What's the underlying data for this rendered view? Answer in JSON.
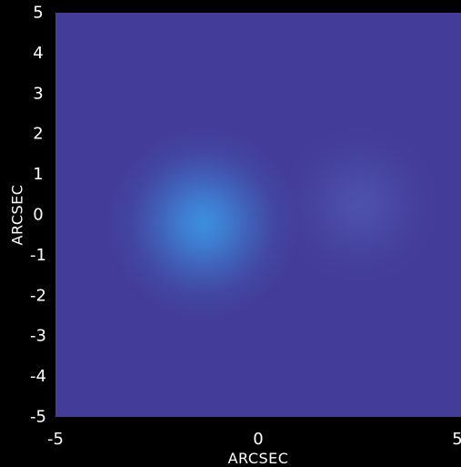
{
  "chart_data": {
    "type": "heatmap",
    "title": "",
    "xlabel": "ARCSEC",
    "ylabel": "ARCSEC",
    "xlim": [
      -5,
      5
    ],
    "ylim": [
      -5,
      5
    ],
    "x_ticks": [
      -5,
      0,
      5
    ],
    "y_ticks": [
      5,
      4,
      3,
      2,
      1,
      0,
      -1,
      -2,
      -3,
      -4,
      -5
    ],
    "x_tick_labels": [
      "-5",
      "0",
      "5"
    ],
    "y_tick_labels": [
      "5",
      "4",
      "3",
      "2",
      "1",
      "0",
      "-1",
      "-2",
      "-3",
      "-4",
      "-5"
    ],
    "grid": false,
    "background_color": "#433d99",
    "sources": [
      {
        "x": -1.35,
        "y": -0.2,
        "peak": 1.0,
        "sigma": 0.9,
        "color": "#3d8fe0"
      },
      {
        "x": 2.5,
        "y": 0.25,
        "peak": 0.45,
        "sigma": 0.75,
        "color": "#5a6bc4"
      }
    ]
  }
}
